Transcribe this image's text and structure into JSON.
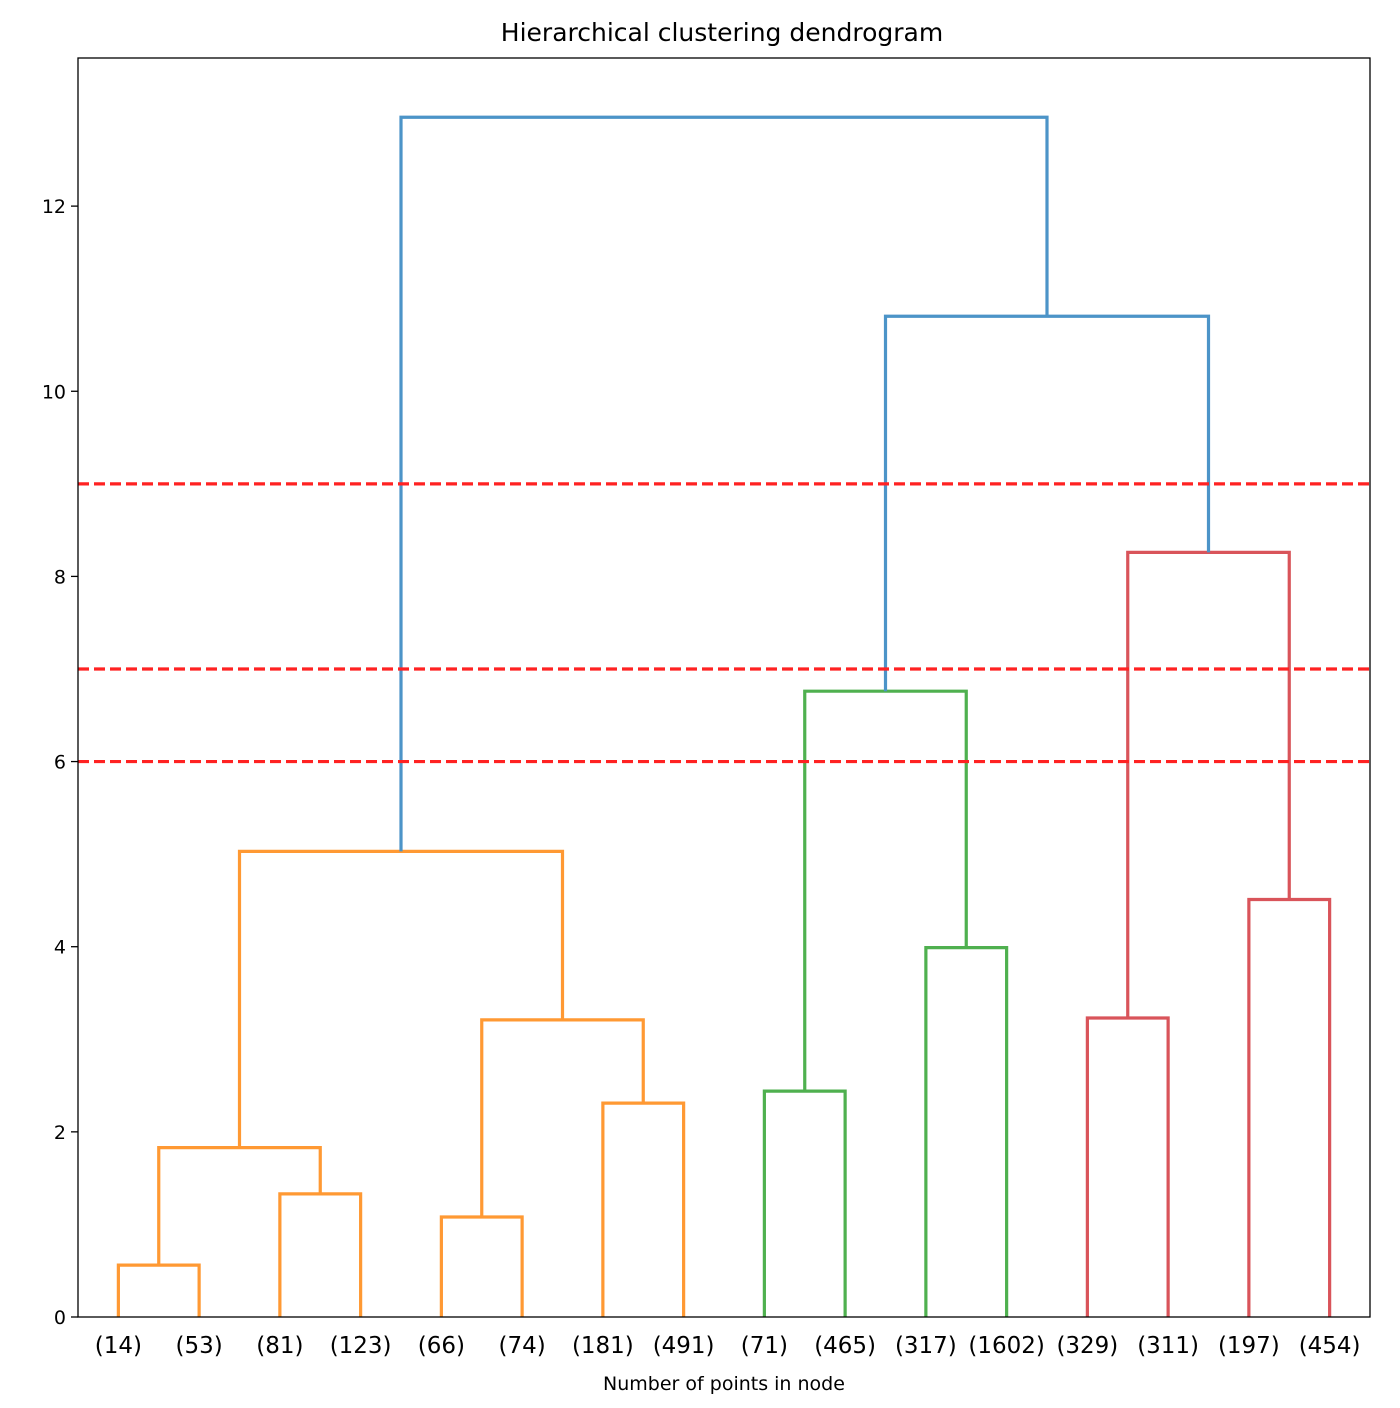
{
  "chart_data": {
    "type": "dendrogram",
    "title": "Hierarchical clustering dendrogram",
    "xlabel": "Number of points in node",
    "ylabel": "",
    "ylim": [
      0,
      13.6
    ],
    "yticks": [
      0,
      2,
      4,
      6,
      8,
      10,
      12
    ],
    "grid": false,
    "leaves": [
      "(14)",
      "(53)",
      "(81)",
      "(123)",
      "(66)",
      "(74)",
      "(181)",
      "(491)",
      "(71)",
      "(465)",
      "(317)",
      "(1602)",
      "(329)",
      "(311)",
      "(197)",
      "(454)"
    ],
    "colors": {
      "orange": "#ff9933",
      "green": "#4fb04f",
      "red": "#d9545a",
      "blue": "#4c94c8",
      "cut": "#ff2222"
    },
    "merges": [
      {
        "id": "n1",
        "left": 0,
        "right": 1,
        "height": 0.56,
        "color": "orange"
      },
      {
        "id": "n2",
        "left": 2,
        "right": 3,
        "height": 1.33,
        "color": "orange"
      },
      {
        "id": "n3",
        "left": "n1",
        "right": "n2",
        "height": 1.83,
        "color": "orange"
      },
      {
        "id": "n4",
        "left": 4,
        "right": 5,
        "height": 1.08,
        "color": "orange"
      },
      {
        "id": "n5",
        "left": 6,
        "right": 7,
        "height": 2.31,
        "color": "orange"
      },
      {
        "id": "n6",
        "left": "n4",
        "right": "n5",
        "height": 3.21,
        "color": "orange"
      },
      {
        "id": "n7",
        "left": "n3",
        "right": "n6",
        "height": 5.03,
        "color": "orange"
      },
      {
        "id": "n8",
        "left": 8,
        "right": 9,
        "height": 2.44,
        "color": "green"
      },
      {
        "id": "n9",
        "left": 10,
        "right": 11,
        "height": 3.99,
        "color": "green"
      },
      {
        "id": "n10",
        "left": "n8",
        "right": "n9",
        "height": 6.76,
        "color": "green"
      },
      {
        "id": "n11",
        "left": 12,
        "right": 13,
        "height": 3.23,
        "color": "red"
      },
      {
        "id": "n12",
        "left": 14,
        "right": 15,
        "height": 4.51,
        "color": "red"
      },
      {
        "id": "n13",
        "left": "n11",
        "right": "n12",
        "height": 8.26,
        "color": "red"
      },
      {
        "id": "n14",
        "left": "n10",
        "right": "n13",
        "height": 10.81,
        "color": "blue"
      },
      {
        "id": "n15",
        "left": "n7",
        "right": "n14",
        "height": 12.96,
        "color": "blue"
      }
    ],
    "cut_lines": [
      9,
      7,
      6
    ]
  }
}
